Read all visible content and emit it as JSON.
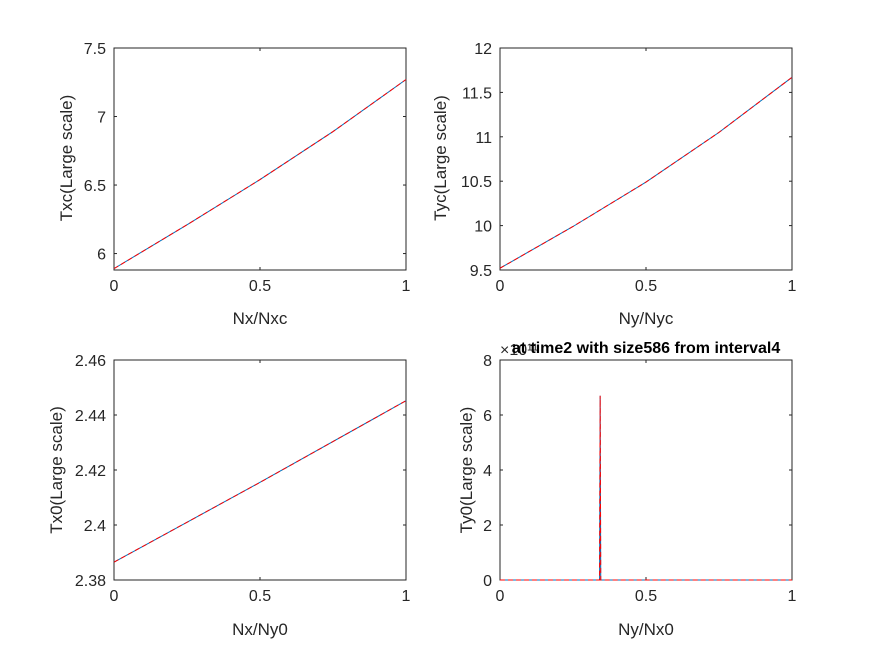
{
  "figure": {
    "background": "#ffffff",
    "axis_color": "#262626",
    "series_colors": [
      "#0072BD",
      "#FF0000"
    ]
  },
  "chart_data": [
    {
      "type": "line",
      "title": "",
      "xlabel": "Nx/Nxc",
      "ylabel": "Txc(Large scale)",
      "xlim": [
        0,
        1
      ],
      "ylim": [
        5.88,
        7.5
      ],
      "xticks": [
        "0",
        "0.5",
        "1"
      ],
      "yticks": [
        "6",
        "6.5",
        "7",
        "7.5"
      ],
      "grid": false,
      "series": [
        {
          "color": "#0072BD",
          "style": "solid",
          "x": [
            0,
            0.25,
            0.5,
            0.75,
            1
          ],
          "y": [
            5.89,
            6.21,
            6.54,
            6.89,
            7.27
          ]
        },
        {
          "color": "#FF0000",
          "style": "dashed",
          "x": [
            0,
            0.25,
            0.5,
            0.75,
            1
          ],
          "y": [
            5.89,
            6.21,
            6.54,
            6.89,
            7.27
          ]
        }
      ]
    },
    {
      "type": "line",
      "title": "",
      "xlabel": "Ny/Nyc",
      "ylabel": "Tyc(Large scale)",
      "xlim": [
        0,
        1
      ],
      "ylim": [
        9.5,
        12
      ],
      "xticks": [
        "0",
        "0.5",
        "1"
      ],
      "yticks": [
        "9.5",
        "10",
        "10.5",
        "11",
        "11.5",
        "12"
      ],
      "grid": false,
      "series": [
        {
          "color": "#0072BD",
          "style": "solid",
          "x": [
            0,
            0.25,
            0.5,
            0.75,
            1
          ],
          "y": [
            9.52,
            9.99,
            10.49,
            11.05,
            11.67
          ]
        },
        {
          "color": "#FF0000",
          "style": "dashed",
          "x": [
            0,
            0.25,
            0.5,
            0.75,
            1
          ],
          "y": [
            9.52,
            9.99,
            10.49,
            11.05,
            11.67
          ]
        }
      ]
    },
    {
      "type": "line",
      "title": "",
      "xlabel": "Nx/Ny0",
      "ylabel": "Tx0(Large scale)",
      "xlim": [
        0,
        1
      ],
      "ylim": [
        2.38,
        2.46
      ],
      "xticks": [
        "0",
        "0.5",
        "1"
      ],
      "yticks": [
        "2.38",
        "2.4",
        "2.42",
        "2.44",
        "2.46"
      ],
      "grid": false,
      "series": [
        {
          "color": "#0072BD",
          "style": "solid",
          "x": [
            0,
            0.5,
            1
          ],
          "y": [
            2.3865,
            2.4155,
            2.4452
          ]
        },
        {
          "color": "#FF0000",
          "style": "dashed",
          "x": [
            0,
            0.5,
            1
          ],
          "y": [
            2.3865,
            2.4155,
            2.4452
          ]
        }
      ]
    },
    {
      "type": "line",
      "title": "at time2 with size586 from interval4",
      "exponent_label": "×10¹¹",
      "xlabel": "Ny/Nx0",
      "ylabel": "Ty0(Large scale)",
      "xlim": [
        0,
        1
      ],
      "ylim": [
        0,
        8
      ],
      "xticks": [
        "0",
        "0.5",
        "1"
      ],
      "yticks": [
        "0",
        "2",
        "4",
        "6",
        "8"
      ],
      "grid": false,
      "series": [
        {
          "color": "#0072BD",
          "style": "solid",
          "x": [
            0,
            0.341,
            0.343,
            0.345,
            1
          ],
          "y": [
            0,
            0,
            6.7,
            0,
            0
          ]
        },
        {
          "color": "#FF0000",
          "style": "dashed",
          "x": [
            0,
            0.341,
            0.343,
            0.345,
            1
          ],
          "y": [
            0,
            0,
            6.7,
            0,
            0
          ]
        }
      ]
    }
  ]
}
